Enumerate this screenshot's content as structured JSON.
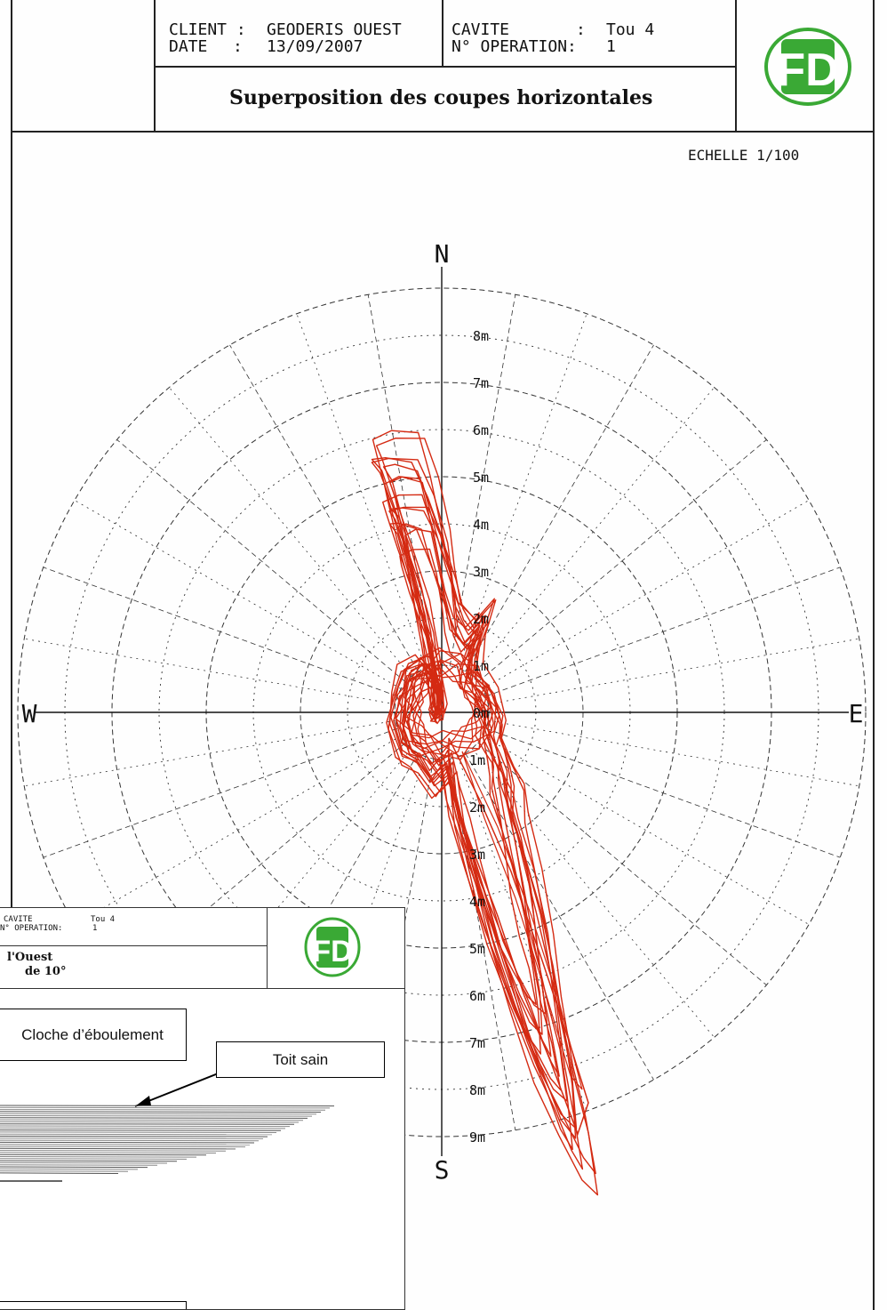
{
  "header": {
    "client_label": "CLIENT :",
    "client_value": "GEODERIS OUEST",
    "date_label": "DATE",
    "date_sep": ":",
    "date_value": "13/09/2007",
    "cavite_label": "CAVITE",
    "cavite_sep": ":",
    "cavite_value": "Tou 4",
    "operation_label": "N° OPERATION:",
    "operation_value": "1",
    "title": "Superposition des coupes horizontales",
    "logo_text": "FD",
    "logo_color": "#3aa935"
  },
  "scale_label": "ECHELLE 1/100",
  "compass": {
    "north": "N",
    "south": "S",
    "east": "E",
    "west": "W"
  },
  "ring_labels_north": [
    "8m",
    "7m",
    "6m",
    "5m",
    "4m",
    "3m",
    "2m",
    "1m"
  ],
  "center_label": "0m",
  "ring_labels_south": [
    "1m",
    "2m",
    "3m",
    "4m",
    "5m",
    "6m",
    "7m",
    "8m",
    "9m"
  ],
  "plot_color": "#d42a12",
  "inset": {
    "cavite_label": "CAVITE",
    "cavite_value": "Tou 4",
    "operation_label": "N° OPERATION:",
    "operation_value": "1",
    "title_line1": "l'Ouest",
    "title_line2": "de 10°",
    "logo_text": "FD",
    "callout_cloche": "Cloche d’éboulement",
    "callout_toit": "Toit sain"
  }
}
